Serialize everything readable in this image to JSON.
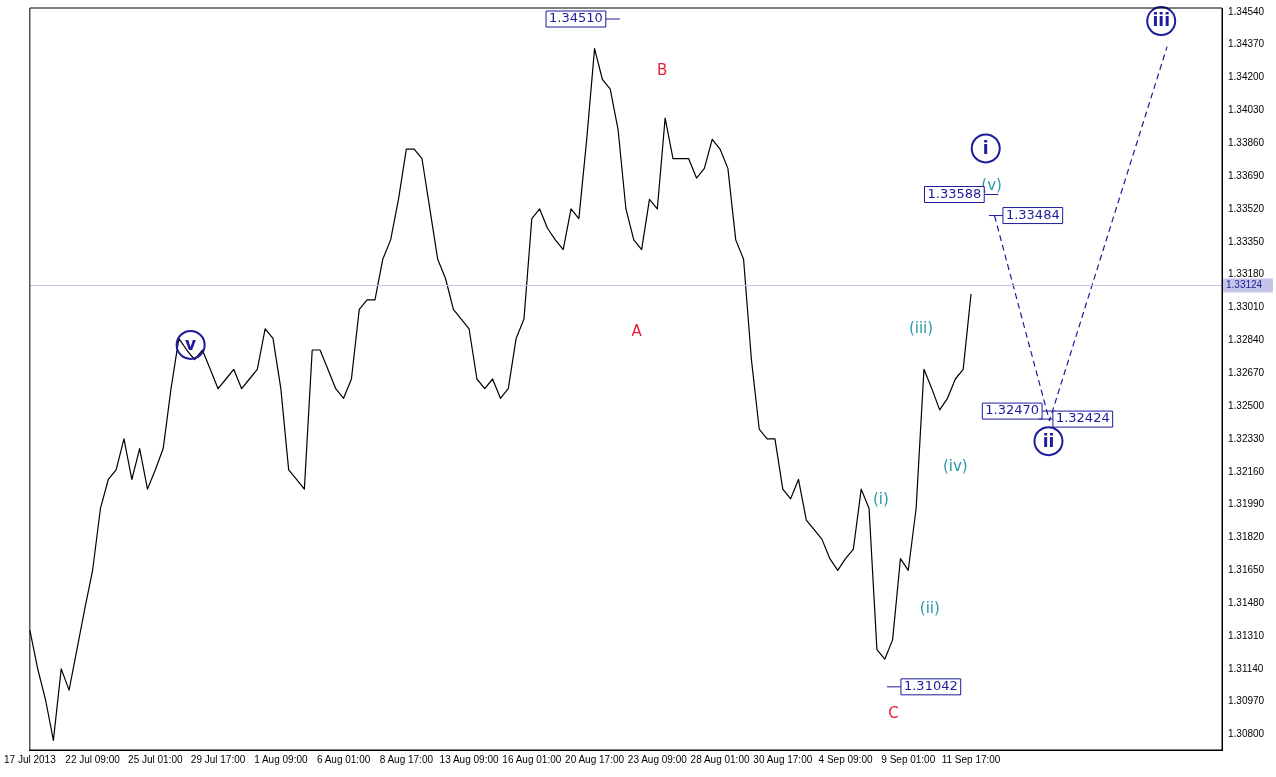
{
  "chart_data": {
    "type": "line",
    "categories": [
      "17 Jul 2013",
      null,
      null,
      null,
      null,
      null,
      null,
      null,
      "22 Jul 09:00",
      null,
      null,
      null,
      null,
      null,
      null,
      null,
      "25 Jul 01:00",
      null,
      null,
      null,
      null,
      null,
      null,
      null,
      "29 Jul 17:00",
      null,
      null,
      null,
      null,
      null,
      null,
      null,
      "1 Aug 09:00",
      null,
      null,
      null,
      null,
      null,
      null,
      null,
      "6 Aug 01:00",
      null,
      null,
      null,
      null,
      null,
      null,
      null,
      "8 Aug 17:00",
      null,
      null,
      null,
      null,
      null,
      null,
      null,
      "13 Aug 09:00",
      null,
      null,
      null,
      null,
      null,
      null,
      null,
      "16 Aug 01:00",
      null,
      null,
      null,
      null,
      null,
      null,
      null,
      "20 Aug 17:00",
      null,
      null,
      null,
      null,
      null,
      null,
      null,
      "23 Aug 09:00",
      null,
      null,
      null,
      null,
      null,
      null,
      null,
      "28 Aug 01:00",
      null,
      null,
      null,
      null,
      null,
      null,
      null,
      "30 Aug 17:00",
      null,
      null,
      null,
      null,
      null,
      null,
      null,
      "4 Sep 09:00",
      null,
      null,
      null,
      null,
      null,
      null,
      null,
      "9 Sep 01:00",
      null,
      null,
      null,
      null,
      null,
      null,
      null,
      "11 Sep 17:00",
      null,
      null,
      null,
      null,
      null,
      null,
      null,
      null,
      null,
      null,
      null,
      null,
      null,
      null,
      null,
      null,
      null,
      null,
      null,
      null,
      null,
      null,
      null,
      null,
      null,
      null,
      null,
      null,
      null,
      null,
      null,
      null
    ],
    "series": [
      {
        "color": "#000000",
        "line_style": "solid",
        "values": [
          1.3134,
          1.3114,
          1.3098,
          1.3077,
          1.3114,
          1.3103,
          1.3124,
          1.3145,
          1.3165,
          1.3197,
          1.3212,
          1.3217,
          1.3233,
          1.3212,
          1.3228,
          1.3207,
          1.3217,
          1.3228,
          1.3259,
          1.3285,
          1.3279,
          1.3274,
          1.3279,
          1.3269,
          1.3259,
          1.3264,
          1.3269,
          1.3259,
          1.3264,
          1.3269,
          1.329,
          1.3285,
          1.3259,
          1.3217,
          1.3212,
          1.3207,
          1.3279,
          1.3279,
          1.3269,
          1.3259,
          1.3254,
          1.3264,
          1.33,
          1.3305,
          1.3305,
          1.3326,
          1.3336,
          1.3357,
          1.3383,
          1.3383,
          1.3378,
          1.3352,
          1.3326,
          1.3316,
          1.33,
          1.3295,
          1.329,
          1.3264,
          1.3259,
          1.3264,
          1.3254,
          1.3259,
          1.3285,
          1.3295,
          1.3347,
          1.3352,
          1.3342,
          1.3336,
          1.3331,
          1.3352,
          1.3347,
          1.3388,
          1.3435,
          1.3419,
          1.3414,
          1.3393,
          1.3352,
          1.3336,
          1.3331,
          1.3357,
          1.3352,
          1.3399,
          1.3378,
          1.3378,
          1.3378,
          1.3368,
          1.3373,
          1.3388,
          1.3383,
          1.3373,
          1.3336,
          1.3326,
          1.3274,
          1.3238,
          1.3233,
          1.3233,
          1.3207,
          1.3202,
          1.3212,
          1.3191,
          1.3186,
          1.3181,
          1.3171,
          1.3165,
          1.3171,
          1.3176,
          1.3207,
          1.3197,
          1.3124,
          1.3119,
          1.3129,
          1.3171,
          1.3165,
          1.3197,
          1.3269,
          1.3259,
          1.3248,
          1.3254,
          1.3264,
          1.3269,
          1.3308,
          null,
          null,
          null,
          null,
          null,
          null,
          null,
          null,
          null,
          null,
          null,
          null,
          null,
          null,
          null,
          null,
          null,
          null,
          null,
          null,
          null,
          null,
          null,
          null,
          null,
          null,
          null,
          null,
          null,
          null,
          null,
          null
        ]
      },
      {
        "color": "#1c1c9c",
        "line_style": "dashed",
        "values": [
          null,
          null,
          null,
          null,
          null,
          null,
          null,
          null,
          null,
          null,
          null,
          null,
          null,
          null,
          null,
          null,
          null,
          null,
          null,
          null,
          null,
          null,
          null,
          null,
          null,
          null,
          null,
          null,
          null,
          null,
          null,
          null,
          null,
          null,
          null,
          null,
          null,
          null,
          null,
          null,
          null,
          null,
          null,
          null,
          null,
          null,
          null,
          null,
          null,
          null,
          null,
          null,
          null,
          null,
          null,
          null,
          null,
          null,
          null,
          null,
          null,
          null,
          null,
          null,
          null,
          null,
          null,
          null,
          null,
          null,
          null,
          null,
          null,
          null,
          null,
          null,
          null,
          null,
          null,
          null,
          null,
          null,
          null,
          null,
          null,
          null,
          null,
          null,
          null,
          null,
          null,
          null,
          null,
          null,
          null,
          null,
          null,
          null,
          null,
          null,
          null,
          null,
          null,
          null,
          null,
          null,
          null,
          null,
          null,
          null,
          null,
          null,
          null,
          null,
          null,
          null,
          null,
          null,
          null,
          null,
          null,
          null,
          null,
          1.33484,
          null,
          null,
          null,
          null,
          null,
          null,
          1.32424,
          null,
          null,
          null,
          null,
          null,
          null,
          null,
          null,
          null,
          null,
          null,
          null,
          null,
          null,
          1.3436,
          null,
          null,
          null,
          null,
          null,
          null,
          null
        ]
      }
    ],
    "ylim": [
      1.3072,
      1.3456
    ],
    "yticks": [
      {
        "value": 1.3454,
        "label": "1.34540"
      },
      {
        "value": 1.3437,
        "label": "1.34370"
      },
      {
        "value": 1.342,
        "label": "1.34200"
      },
      {
        "value": 1.3403,
        "label": "1.34030"
      },
      {
        "value": 1.3386,
        "label": "1.33860"
      },
      {
        "value": 1.3369,
        "label": "1.33690"
      },
      {
        "value": 1.3352,
        "label": "1.33520"
      },
      {
        "value": 1.3335,
        "label": "1.33350"
      },
      {
        "value": 1.3318,
        "label": "1.33180"
      },
      {
        "value": 1.3301,
        "label": "1.33010"
      },
      {
        "value": 1.3284,
        "label": "1.32840"
      },
      {
        "value": 1.3267,
        "label": "1.32670"
      },
      {
        "value": 1.325,
        "label": "1.32500"
      },
      {
        "value": 1.3233,
        "label": "1.32330"
      },
      {
        "value": 1.3216,
        "label": "1.32160"
      },
      {
        "value": 1.3199,
        "label": "1.31990"
      },
      {
        "value": 1.3182,
        "label": "1.31820"
      },
      {
        "value": 1.3165,
        "label": "1.31650"
      },
      {
        "value": 1.3148,
        "label": "1.31480"
      },
      {
        "value": 1.3131,
        "label": "1.31310"
      },
      {
        "value": 1.3114,
        "label": "1.31140"
      },
      {
        "value": 1.3097,
        "label": "1.30970"
      },
      {
        "value": 1.308,
        "label": "1.30800"
      }
    ],
    "ref_lines": [
      {
        "axis": "y",
        "value": 1.33124,
        "label": "1.33124",
        "color": "#c4c4e8"
      }
    ],
    "annotations": [
      "1.34510",
      "B",
      "A",
      "C",
      "(i)",
      "(ii)",
      "(iii)",
      "(iv)",
      "(v)",
      "1.33588",
      "1.33484",
      "1.32470",
      "1.32424",
      "1.31042",
      "i",
      "ii",
      "iii",
      "v"
    ],
    "grid": false,
    "legend": false,
    "marker": "none"
  }
}
